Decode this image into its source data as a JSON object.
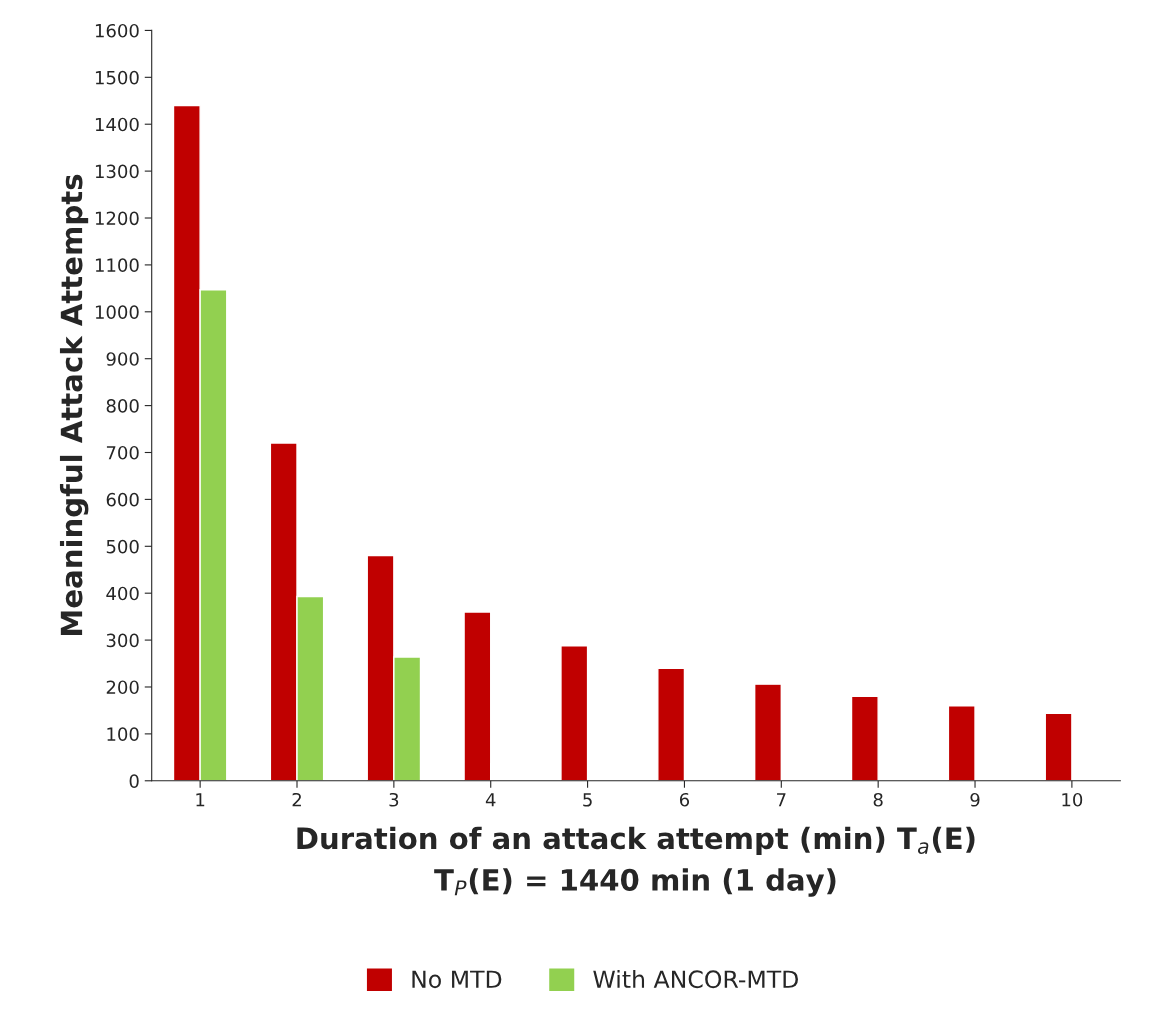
{
  "chart_data": {
    "type": "bar",
    "xlabel": "Duration of an attack attempt (min) T$_{a}$(E)\nT$_{P}$(E) = 1440 min (1 day)",
    "ylabel": "Meaningful Attack Attempts",
    "categories": [
      "1",
      "2",
      "3",
      "4",
      "5",
      "6",
      "7",
      "8",
      "9",
      "10"
    ],
    "series": [
      {
        "name": "No MTD",
        "color": "#c00000",
        "values": [
          1440,
          720,
          480,
          360,
          288,
          240,
          206,
          180,
          160,
          144
        ]
      },
      {
        "name": "With ANCOR-MTD",
        "color": "#92d050",
        "values": [
          1047,
          393,
          264,
          null,
          null,
          null,
          null,
          null,
          null,
          null
        ]
      }
    ],
    "ylim": [
      0,
      1600
    ],
    "yticks": [
      0,
      100,
      200,
      300,
      400,
      500,
      600,
      700,
      800,
      900,
      1000,
      1100,
      1200,
      1300,
      1400,
      1500,
      1600
    ],
    "grid": false,
    "legend": "bottom"
  }
}
